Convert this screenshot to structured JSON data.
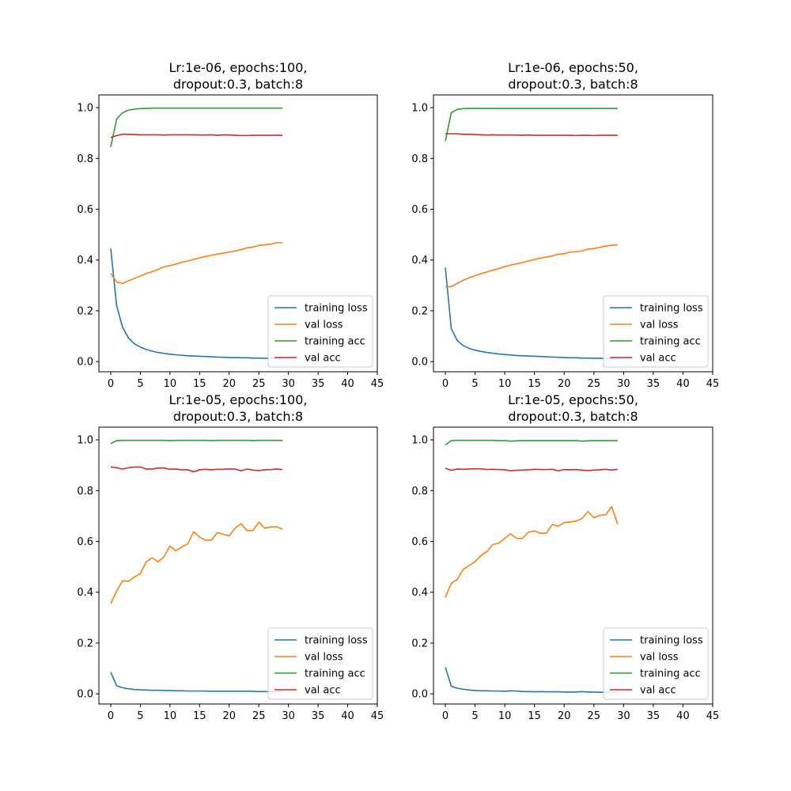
{
  "figure": {
    "colors": {
      "training loss": "#1f77b4",
      "val loss": "#ff7f0e",
      "training acc": "#2ca02c",
      "val acc": "#d62728"
    }
  },
  "chart_data": [
    {
      "type": "line",
      "title_lines": [
        "Lr:1e-06, epochs:100,",
        "dropout:0.3, batch:8"
      ],
      "xlim": [
        -2,
        45
      ],
      "ylim": [
        -0.04,
        1.05
      ],
      "xticks": [
        "0",
        "5",
        "10",
        "15",
        "20",
        "25",
        "30",
        "35",
        "40",
        "45"
      ],
      "yticks": [
        "0.0",
        "0.2",
        "0.4",
        "0.6",
        "0.8",
        "1.0"
      ],
      "legend": {
        "position": "lower-right",
        "labels": [
          "training loss",
          "val loss",
          "training acc",
          "val acc"
        ]
      },
      "grid": false,
      "x": [
        0,
        1,
        2,
        3,
        4,
        5,
        6,
        7,
        8,
        9,
        10,
        11,
        12,
        13,
        14,
        15,
        16,
        17,
        18,
        19,
        20,
        21,
        22,
        23,
        24,
        25,
        26,
        27,
        28,
        29
      ],
      "series": [
        {
          "name": "training loss",
          "values": [
            0.445,
            0.22,
            0.135,
            0.093,
            0.07,
            0.057,
            0.048,
            0.041,
            0.036,
            0.032,
            0.029,
            0.027,
            0.025,
            0.023,
            0.022,
            0.021,
            0.02,
            0.019,
            0.018,
            0.017,
            0.016,
            0.016,
            0.015,
            0.015,
            0.014,
            0.014,
            0.013,
            0.013,
            0.013,
            0.012
          ]
        },
        {
          "name": "val loss",
          "values": [
            0.348,
            0.313,
            0.308,
            0.318,
            0.328,
            0.337,
            0.347,
            0.354,
            0.363,
            0.373,
            0.378,
            0.384,
            0.391,
            0.396,
            0.402,
            0.408,
            0.414,
            0.419,
            0.423,
            0.427,
            0.431,
            0.436,
            0.441,
            0.448,
            0.451,
            0.457,
            0.46,
            0.462,
            0.468,
            0.468
          ]
        },
        {
          "name": "training acc",
          "values": [
            0.845,
            0.955,
            0.98,
            0.99,
            0.994,
            0.996,
            0.997,
            0.998,
            0.998,
            0.998,
            0.998,
            0.998,
            0.998,
            0.998,
            0.998,
            0.998,
            0.998,
            0.998,
            0.998,
            0.998,
            0.998,
            0.998,
            0.998,
            0.998,
            0.998,
            0.998,
            0.998,
            0.998,
            0.998,
            0.998
          ]
        },
        {
          "name": "val acc",
          "values": [
            0.882,
            0.89,
            0.895,
            0.895,
            0.894,
            0.893,
            0.893,
            0.893,
            0.893,
            0.892,
            0.893,
            0.893,
            0.893,
            0.893,
            0.893,
            0.892,
            0.892,
            0.893,
            0.891,
            0.893,
            0.892,
            0.891,
            0.89,
            0.89,
            0.891,
            0.891,
            0.891,
            0.891,
            0.891,
            0.891
          ]
        }
      ]
    },
    {
      "type": "line",
      "title_lines": [
        "Lr:1e-06, epochs:50,",
        "dropout:0.3, batch:8"
      ],
      "xlim": [
        -2,
        45
      ],
      "ylim": [
        -0.04,
        1.05
      ],
      "xticks": [
        "0",
        "5",
        "10",
        "15",
        "20",
        "25",
        "30",
        "35",
        "40",
        "45"
      ],
      "yticks": [
        "0.0",
        "0.2",
        "0.4",
        "0.6",
        "0.8",
        "1.0"
      ],
      "legend": {
        "position": "lower-right",
        "labels": [
          "training loss",
          "val loss",
          "training acc",
          "val acc"
        ]
      },
      "grid": false,
      "x": [
        0,
        1,
        2,
        3,
        4,
        5,
        6,
        7,
        8,
        9,
        10,
        11,
        12,
        13,
        14,
        15,
        16,
        17,
        18,
        19,
        20,
        21,
        22,
        23,
        24,
        25,
        26,
        27,
        28,
        29
      ],
      "series": [
        {
          "name": "training loss",
          "values": [
            0.37,
            0.13,
            0.083,
            0.063,
            0.052,
            0.045,
            0.04,
            0.036,
            0.033,
            0.03,
            0.028,
            0.026,
            0.024,
            0.023,
            0.022,
            0.021,
            0.02,
            0.019,
            0.018,
            0.017,
            0.016,
            0.015,
            0.015,
            0.014,
            0.014,
            0.013,
            0.013,
            0.012,
            0.012,
            0.012
          ]
        },
        {
          "name": "val loss",
          "values": [
            0.295,
            0.295,
            0.308,
            0.32,
            0.33,
            0.338,
            0.346,
            0.353,
            0.36,
            0.366,
            0.374,
            0.38,
            0.385,
            0.39,
            0.396,
            0.402,
            0.407,
            0.412,
            0.416,
            0.423,
            0.425,
            0.431,
            0.433,
            0.436,
            0.443,
            0.445,
            0.45,
            0.455,
            0.458,
            0.46
          ]
        },
        {
          "name": "training acc",
          "values": [
            0.868,
            0.98,
            0.993,
            0.996,
            0.997,
            0.997,
            0.997,
            0.997,
            0.997,
            0.997,
            0.997,
            0.997,
            0.997,
            0.997,
            0.997,
            0.997,
            0.997,
            0.997,
            0.997,
            0.997,
            0.997,
            0.997,
            0.997,
            0.997,
            0.997,
            0.997,
            0.997,
            0.997,
            0.997,
            0.997
          ]
        },
        {
          "name": "val acc",
          "values": [
            0.897,
            0.897,
            0.897,
            0.895,
            0.895,
            0.894,
            0.893,
            0.892,
            0.893,
            0.892,
            0.892,
            0.892,
            0.892,
            0.891,
            0.892,
            0.891,
            0.891,
            0.891,
            0.891,
            0.891,
            0.891,
            0.891,
            0.89,
            0.891,
            0.891,
            0.89,
            0.891,
            0.891,
            0.891,
            0.891
          ]
        }
      ]
    },
    {
      "type": "line",
      "title_lines": [
        "Lr:1e-05, epochs:100,",
        "dropout:0.3, batch:8"
      ],
      "xlim": [
        -2,
        45
      ],
      "ylim": [
        -0.04,
        1.05
      ],
      "xticks": [
        "0",
        "5",
        "10",
        "15",
        "20",
        "25",
        "30",
        "35",
        "40",
        "45"
      ],
      "yticks": [
        "0.0",
        "0.2",
        "0.4",
        "0.6",
        "0.8",
        "1.0"
      ],
      "legend": {
        "position": "lower-right",
        "labels": [
          "training loss",
          "val loss",
          "training acc",
          "val acc"
        ]
      },
      "grid": false,
      "x": [
        0,
        1,
        2,
        3,
        4,
        5,
        6,
        7,
        8,
        9,
        10,
        11,
        12,
        13,
        14,
        15,
        16,
        17,
        18,
        19,
        20,
        21,
        22,
        23,
        24,
        25,
        26,
        27,
        28,
        29
      ],
      "series": [
        {
          "name": "training loss",
          "values": [
            0.085,
            0.032,
            0.024,
            0.02,
            0.017,
            0.016,
            0.015,
            0.014,
            0.014,
            0.013,
            0.013,
            0.012,
            0.012,
            0.011,
            0.011,
            0.011,
            0.011,
            0.01,
            0.01,
            0.01,
            0.01,
            0.01,
            0.01,
            0.01,
            0.01,
            0.009,
            0.009,
            0.009,
            0.009,
            0.009
          ]
        },
        {
          "name": "val loss",
          "values": [
            0.355,
            0.405,
            0.445,
            0.443,
            0.46,
            0.473,
            0.52,
            0.535,
            0.52,
            0.54,
            0.582,
            0.563,
            0.578,
            0.59,
            0.638,
            0.617,
            0.605,
            0.605,
            0.635,
            0.628,
            0.622,
            0.652,
            0.67,
            0.643,
            0.642,
            0.676,
            0.652,
            0.657,
            0.658,
            0.648
          ]
        },
        {
          "name": "training acc",
          "values": [
            0.985,
            0.997,
            0.998,
            0.998,
            0.998,
            0.998,
            0.998,
            0.998,
            0.998,
            0.998,
            0.997,
            0.998,
            0.998,
            0.998,
            0.998,
            0.998,
            0.998,
            0.997,
            0.998,
            0.998,
            0.998,
            0.998,
            0.998,
            0.998,
            0.997,
            0.998,
            0.998,
            0.998,
            0.998,
            0.997
          ]
        },
        {
          "name": "val acc",
          "values": [
            0.893,
            0.89,
            0.885,
            0.89,
            0.893,
            0.893,
            0.885,
            0.885,
            0.889,
            0.889,
            0.884,
            0.885,
            0.882,
            0.882,
            0.874,
            0.882,
            0.884,
            0.882,
            0.884,
            0.884,
            0.885,
            0.885,
            0.878,
            0.885,
            0.881,
            0.879,
            0.882,
            0.883,
            0.885,
            0.883
          ]
        }
      ]
    },
    {
      "type": "line",
      "title_lines": [
        "Lr:1e-05, epochs:50,",
        "dropout:0.3, batch:8"
      ],
      "xlim": [
        -2,
        45
      ],
      "ylim": [
        -0.04,
        1.05
      ],
      "xticks": [
        "0",
        "5",
        "10",
        "15",
        "20",
        "25",
        "30",
        "35",
        "40",
        "45"
      ],
      "yticks": [
        "0.0",
        "0.2",
        "0.4",
        "0.6",
        "0.8",
        "1.0"
      ],
      "legend": {
        "position": "lower-right",
        "labels": [
          "training loss",
          "val loss",
          "training acc",
          "val acc"
        ]
      },
      "grid": false,
      "x": [
        0,
        1,
        2,
        3,
        4,
        5,
        6,
        7,
        8,
        9,
        10,
        11,
        12,
        13,
        14,
        15,
        16,
        17,
        18,
        19,
        20,
        21,
        22,
        23,
        24,
        25,
        26,
        27,
        28,
        29
      ],
      "series": [
        {
          "name": "training loss",
          "values": [
            0.105,
            0.03,
            0.022,
            0.018,
            0.015,
            0.013,
            0.012,
            0.012,
            0.011,
            0.011,
            0.01,
            0.012,
            0.011,
            0.009,
            0.009,
            0.008,
            0.009,
            0.008,
            0.008,
            0.008,
            0.007,
            0.007,
            0.007,
            0.009,
            0.007,
            0.007,
            0.006,
            0.006,
            0.006,
            0.006
          ]
        },
        {
          "name": "val loss",
          "values": [
            0.38,
            0.435,
            0.45,
            0.49,
            0.505,
            0.52,
            0.545,
            0.56,
            0.588,
            0.593,
            0.612,
            0.63,
            0.612,
            0.612,
            0.637,
            0.641,
            0.632,
            0.632,
            0.667,
            0.66,
            0.674,
            0.677,
            0.68,
            0.69,
            0.718,
            0.693,
            0.703,
            0.705,
            0.737,
            0.668
          ]
        },
        {
          "name": "training acc",
          "values": [
            0.98,
            0.997,
            0.998,
            0.998,
            0.998,
            0.998,
            0.998,
            0.998,
            0.998,
            0.997,
            0.997,
            0.995,
            0.996,
            0.997,
            0.997,
            0.997,
            0.997,
            0.997,
            0.997,
            0.997,
            0.997,
            0.997,
            0.997,
            0.995,
            0.996,
            0.997,
            0.997,
            0.997,
            0.997,
            0.997
          ]
        },
        {
          "name": "val acc",
          "values": [
            0.888,
            0.88,
            0.885,
            0.884,
            0.885,
            0.886,
            0.886,
            0.883,
            0.884,
            0.883,
            0.882,
            0.878,
            0.88,
            0.881,
            0.882,
            0.884,
            0.883,
            0.883,
            0.884,
            0.878,
            0.883,
            0.882,
            0.883,
            0.881,
            0.879,
            0.881,
            0.882,
            0.884,
            0.881,
            0.884
          ]
        }
      ]
    }
  ]
}
